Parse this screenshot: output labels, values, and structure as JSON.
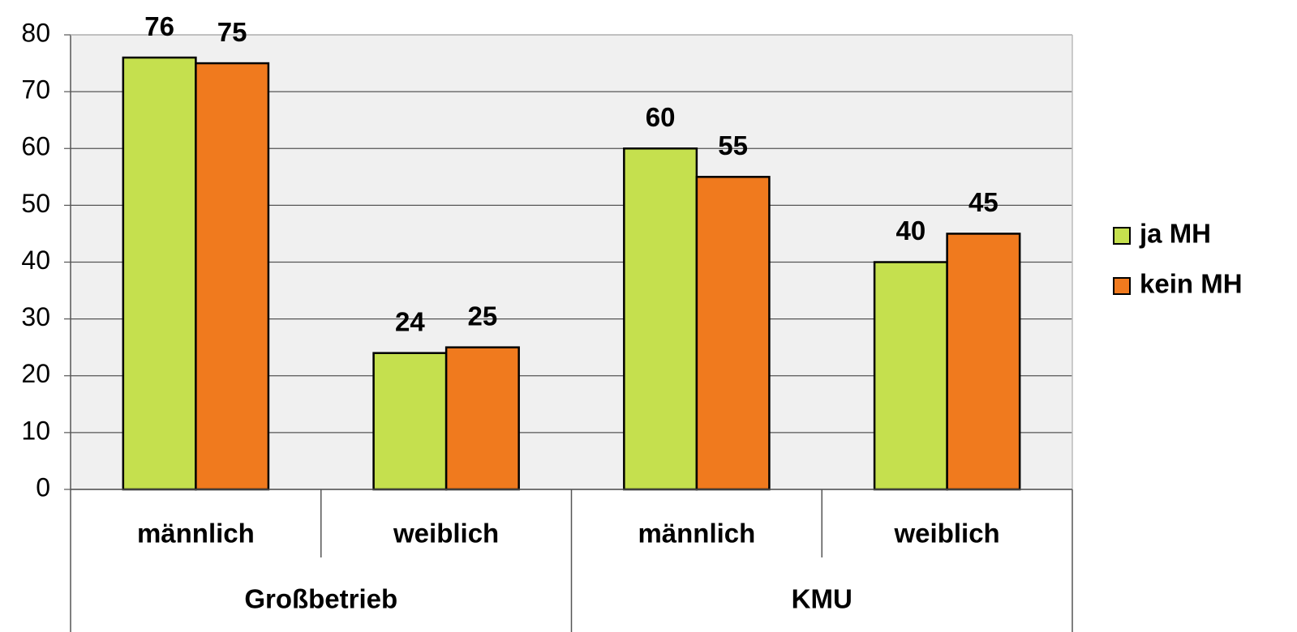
{
  "chart_data": {
    "type": "bar",
    "categories": [
      "männlich",
      "weiblich",
      "männlich",
      "weiblich"
    ],
    "groups": [
      "Großbetrieb",
      "KMU"
    ],
    "series": [
      {
        "name": "ja MH",
        "color": "#c5e04e",
        "values": [
          76,
          24,
          60,
          40
        ]
      },
      {
        "name": "kein MH",
        "color": "#f07a1e",
        "values": [
          75,
          25,
          55,
          45
        ]
      }
    ],
    "ylim": [
      0,
      80
    ],
    "yticks": [
      0,
      10,
      20,
      30,
      40,
      50,
      60,
      70,
      80
    ],
    "grid": true,
    "legend": "right"
  }
}
